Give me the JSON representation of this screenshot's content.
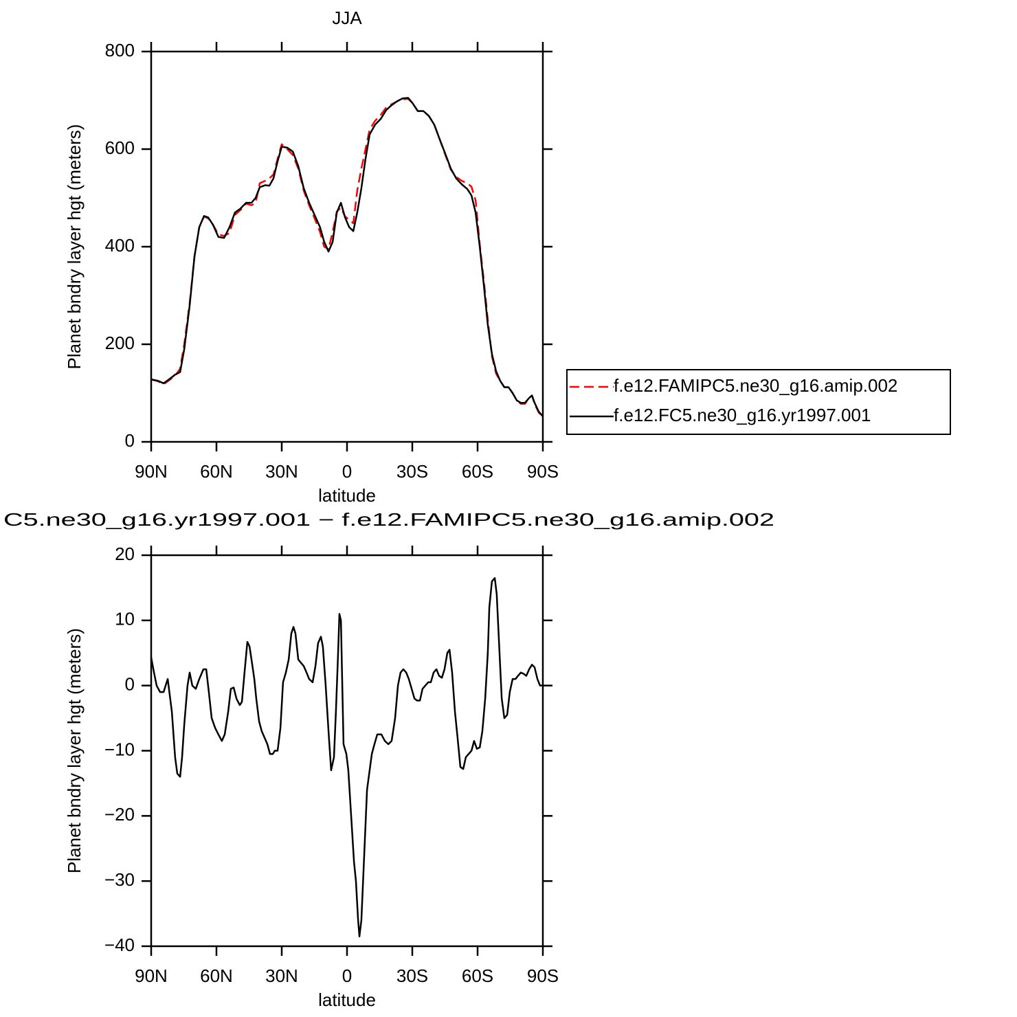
{
  "chart_data": [
    {
      "type": "line",
      "title": "JJA",
      "xlabel": "latitude",
      "ylabel": "Planet bndry layer hgt (meters)",
      "x": [
        90,
        86.8,
        84.3,
        81.8,
        78.9,
        76.7,
        74.8,
        72.3,
        70.1,
        67.9,
        65.7,
        63.8,
        61.6,
        59.1,
        56.5,
        54.0,
        51.5,
        49.0,
        46.4,
        43.9,
        42.0,
        40.1,
        37.6,
        35.7,
        33.8,
        31.9,
        30.0,
        27.5,
        24.9,
        22.4,
        19.9,
        17.4,
        14.9,
        12.4,
        10.5,
        8.5,
        6.6,
        4.7,
        2.8,
        0.9,
        -1.0,
        -2.9,
        -4.7,
        -6.6,
        -8.5,
        -10.4,
        -12.9,
        -15.5,
        -18.0,
        -20.5,
        -23.0,
        -25.6,
        -28.1,
        -30.0,
        -32.5,
        -35.1,
        -37.6,
        -40.1,
        -42.6,
        -45.2,
        -47.7,
        -50.2,
        -52.7,
        -55.3,
        -57.2,
        -59.1,
        -61.0,
        -62.9,
        -64.7,
        -66.6,
        -68.5,
        -70.4,
        -72.3,
        -74.2,
        -76.1,
        -78.0,
        -79.9,
        -81.8,
        -83.7,
        -85.0,
        -86.2,
        -88.1,
        -90
      ],
      "series": [
        {
          "name": "f.e12.FAMIPC5.ne30_g16.amip.002",
          "color": "#ff0000",
          "dash": "dashed",
          "values": [
            128,
            124,
            118,
            126,
            136,
            150,
            200,
            285,
            380,
            440,
            462,
            458,
            445,
            425,
            422,
            428,
            465,
            475,
            488,
            485,
            490,
            530,
            535,
            540,
            548,
            580,
            610,
            600,
            588,
            560,
            515,
            485,
            458,
            430,
            400,
            395,
            430,
            472,
            480,
            462,
            455,
            448,
            515,
            560,
            600,
            640,
            658,
            670,
            685,
            692,
            698,
            702,
            703,
            695,
            678,
            678,
            668,
            650,
            620,
            588,
            558,
            543,
            535,
            530,
            523,
            495,
            405,
            330,
            250,
            175,
            140,
            125,
            112,
            112,
            100,
            85,
            78,
            78,
            90,
            95,
            78,
            60,
            52
          ]
        },
        {
          "name": "f.e12.FC5.ne30_g16.yr1997.001",
          "color": "#000000",
          "dash": "solid",
          "values": [
            128,
            125,
            120,
            128,
            138,
            143,
            190,
            280,
            380,
            440,
            463,
            460,
            445,
            420,
            418,
            440,
            470,
            478,
            490,
            490,
            500,
            522,
            526,
            525,
            540,
            575,
            605,
            603,
            595,
            565,
            520,
            490,
            465,
            440,
            410,
            390,
            410,
            470,
            490,
            460,
            440,
            432,
            470,
            520,
            580,
            630,
            650,
            662,
            680,
            690,
            698,
            704,
            705,
            695,
            678,
            678,
            668,
            650,
            620,
            590,
            560,
            540,
            528,
            518,
            505,
            470,
            400,
            320,
            240,
            180,
            145,
            125,
            112,
            112,
            100,
            85,
            80,
            80,
            90,
            95,
            80,
            62,
            52
          ]
        }
      ],
      "xlim": [
        90,
        -90
      ],
      "xticks": [
        {
          "value": 90,
          "label": "90N"
        },
        {
          "value": 60,
          "label": "60N"
        },
        {
          "value": 30,
          "label": "30N"
        },
        0,
        {
          "value": -30,
          "label": "30S"
        },
        {
          "value": -60,
          "label": "60S"
        },
        {
          "value": -90,
          "label": "90S"
        }
      ],
      "ylim": [
        0,
        800
      ],
      "yticks": [
        0,
        200,
        400,
        600,
        800
      ],
      "legend": "right"
    },
    {
      "type": "line",
      "title": "C5.ne30_g16.yr1997.001 − f.e12.FAMIPC5.ne30_g16.amip.002",
      "xlabel": "latitude",
      "ylabel": "Planet bndry layer hgt (meters)",
      "x": [
        90,
        88.7,
        87.5,
        85.9,
        84.3,
        82.4,
        80.5,
        79.0,
        78.0,
        76.7,
        75.8,
        74.8,
        73.3,
        72.3,
        71.1,
        69.5,
        67.9,
        66.0,
        64.7,
        63.5,
        62.2,
        60.6,
        59.1,
        57.5,
        56.2,
        54.6,
        53.4,
        52.1,
        50.8,
        49.3,
        48.3,
        47.1,
        45.8,
        44.8,
        43.9,
        42.6,
        41.7,
        40.4,
        39.2,
        37.9,
        36.6,
        35.4,
        34.1,
        33.2,
        31.9,
        30.6,
        29.4,
        28.1,
        26.8,
        25.6,
        24.6,
        23.7,
        22.4,
        21.2,
        19.9,
        18.6,
        17.4,
        15.8,
        14.5,
        13.3,
        12.0,
        11.1,
        9.8,
        8.5,
        7.3,
        6.0,
        5.1,
        4.1,
        3.5,
        2.8,
        1.6,
        0.3,
        -0.6,
        -1.9,
        -3.2,
        -4.1,
        -5.1,
        -5.7,
        -6.6,
        -7.9,
        -9.2,
        -10.4,
        -11.4,
        -12.6,
        -13.9,
        -15.8,
        -17.4,
        -19.0,
        -20.5,
        -22.1,
        -23.4,
        -24.6,
        -25.9,
        -27.2,
        -28.4,
        -29.7,
        -31.0,
        -32.2,
        -33.5,
        -34.7,
        -36.0,
        -37.3,
        -38.5,
        -39.8,
        -41.1,
        -42.3,
        -43.6,
        -44.8,
        -46.1,
        -47.1,
        -48.3,
        -49.6,
        -50.8,
        -52.1,
        -53.4,
        -54.6,
        -55.9,
        -57.2,
        -58.4,
        -59.7,
        -61.0,
        -62.2,
        -63.5,
        -64.7,
        -65.4,
        -66.6,
        -67.9,
        -68.8,
        -69.8,
        -71.1,
        -72.3,
        -73.6,
        -74.8,
        -76.1,
        -77.4,
        -78.6,
        -79.9,
        -81.2,
        -82.4,
        -83.7,
        -85.0,
        -86.2,
        -87.5,
        -88.7,
        -90
      ],
      "values": [
        4.3,
        2,
        0,
        -1,
        -1,
        1,
        -4,
        -11,
        -13.5,
        -14,
        -11,
        -6,
        0,
        2,
        0,
        -0.5,
        1,
        2.5,
        2.5,
        -1,
        -5,
        -6.5,
        -7.5,
        -8.5,
        -7.5,
        -4,
        -0.5,
        -0.3,
        -2,
        -3,
        -2.5,
        2,
        6.7,
        6,
        4,
        1,
        -2,
        -5.5,
        -7,
        -8,
        -9,
        -10.5,
        -10.5,
        -10,
        -10,
        -6.5,
        0.5,
        2,
        4,
        8,
        9,
        8,
        4,
        3.5,
        3,
        2,
        1,
        0.5,
        3,
        6.5,
        7.5,
        6,
        0,
        -7,
        -13,
        -11,
        -4,
        5,
        11,
        10,
        -9,
        -10.5,
        -13,
        -20,
        -27,
        -30,
        -36,
        -38.5,
        -36,
        -26,
        -16,
        -13,
        -10.5,
        -9,
        -7.5,
        -7.5,
        -8.5,
        -9,
        -8.5,
        -5,
        0,
        2,
        2.5,
        2,
        1,
        -0.5,
        -2,
        -2.3,
        -2.3,
        -0.5,
        0,
        0.5,
        0.5,
        2,
        2.5,
        1.5,
        1.2,
        2.5,
        5,
        5.5,
        2,
        -4,
        -8,
        -12.5,
        -12.8,
        -11,
        -10.5,
        -10,
        -8.5,
        -9.7,
        -9.5,
        -7,
        -2,
        5,
        12,
        16,
        16.5,
        14,
        7,
        -2,
        -5,
        -4.5,
        -1,
        1,
        1,
        1.5,
        2,
        1.8,
        1.5,
        2.5,
        3.2,
        2.8,
        1,
        0,
        0
      ],
      "color": "#000000",
      "xlim": [
        90,
        -90
      ],
      "xticks": [
        {
          "value": 90,
          "label": "90N"
        },
        {
          "value": 60,
          "label": "60N"
        },
        {
          "value": 30,
          "label": "30N"
        },
        0,
        {
          "value": -30,
          "label": "30S"
        },
        {
          "value": -60,
          "label": "60S"
        },
        {
          "value": -90,
          "label": "90S"
        }
      ],
      "ylim": [
        -40,
        20
      ],
      "yticks": [
        {
          "value": -40,
          "label": "−40"
        },
        {
          "value": -30,
          "label": "−30"
        },
        {
          "value": -20,
          "label": "−20"
        },
        {
          "value": -10,
          "label": "−10"
        },
        0,
        10,
        20
      ]
    }
  ]
}
